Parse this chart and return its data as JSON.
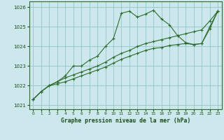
{
  "title": "Graphe pression niveau de la mer (hPa)",
  "background_color": "#cce8ec",
  "grid_color": "#99cccc",
  "line_color": "#2d6b2d",
  "ylim": [
    1020.8,
    1026.3
  ],
  "xlim": [
    -0.5,
    23.5
  ],
  "yticks": [
    1021,
    1022,
    1023,
    1024,
    1025,
    1026
  ],
  "xticks": [
    0,
    1,
    2,
    3,
    4,
    5,
    6,
    7,
    8,
    9,
    10,
    11,
    12,
    13,
    14,
    15,
    16,
    17,
    18,
    19,
    20,
    21,
    22,
    23
  ],
  "series1": [
    1021.3,
    1021.7,
    1022.0,
    1022.2,
    1022.5,
    1023.0,
    1023.0,
    1023.3,
    1023.5,
    1024.0,
    1024.4,
    1025.7,
    1025.8,
    1025.5,
    1025.65,
    1025.85,
    1025.4,
    1025.1,
    1024.55,
    1024.2,
    1024.1,
    1024.15,
    1024.9,
    1025.8
  ],
  "series2": [
    1021.3,
    1021.7,
    1022.0,
    1022.2,
    1022.4,
    1022.55,
    1022.7,
    1022.85,
    1023.0,
    1023.2,
    1023.45,
    1023.65,
    1023.8,
    1024.0,
    1024.15,
    1024.25,
    1024.35,
    1024.45,
    1024.55,
    1024.65,
    1024.75,
    1024.85,
    1025.3,
    1025.8
  ],
  "series3": [
    1021.3,
    1021.7,
    1022.0,
    1022.1,
    1022.2,
    1022.35,
    1022.5,
    1022.65,
    1022.8,
    1022.95,
    1023.15,
    1023.35,
    1023.5,
    1023.65,
    1023.8,
    1023.9,
    1023.95,
    1024.05,
    1024.1,
    1024.15,
    1024.1,
    1024.15,
    1025.0,
    1025.8
  ]
}
